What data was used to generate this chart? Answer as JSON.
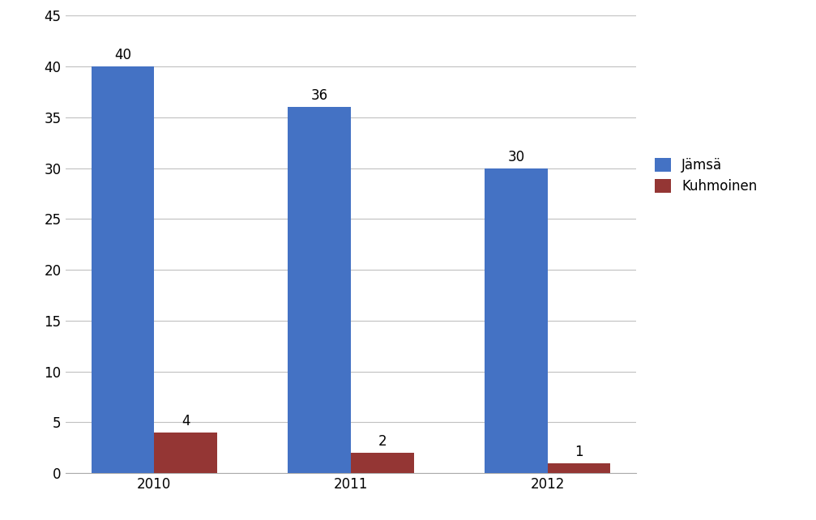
{
  "years": [
    "2010",
    "2011",
    "2012"
  ],
  "jamsa_values": [
    40,
    36,
    30
  ],
  "kuhmoinen_values": [
    4,
    2,
    1
  ],
  "jamsa_color": "#4472C4",
  "kuhmoinen_color": "#943634",
  "ylim": [
    0,
    45
  ],
  "yticks": [
    0,
    5,
    10,
    15,
    20,
    25,
    30,
    35,
    40,
    45
  ],
  "legend_jamsa": "Jämsä",
  "legend_kuhmoinen": "Kuhmoinen",
  "bar_width": 0.32,
  "background_color": "#ffffff",
  "grid_color": "#c0c0c0",
  "label_fontsize": 12,
  "tick_fontsize": 12
}
